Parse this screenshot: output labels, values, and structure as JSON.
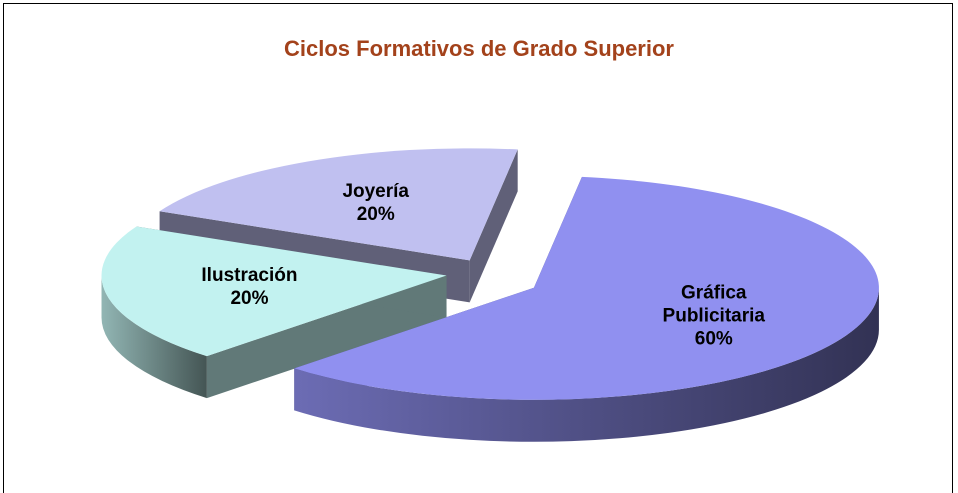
{
  "chart_data": {
    "type": "pie",
    "title": "Ciclos Formativos de Grado Superior",
    "categories": [
      "Gráfica Publicitaria",
      "Ilustración",
      "Joyería"
    ],
    "values": [
      60,
      20,
      20
    ],
    "value_labels": [
      "60%",
      "20%",
      "20%"
    ],
    "colors": [
      "#9090f0",
      "#c2f2f0",
      "#c0c0f0"
    ]
  }
}
